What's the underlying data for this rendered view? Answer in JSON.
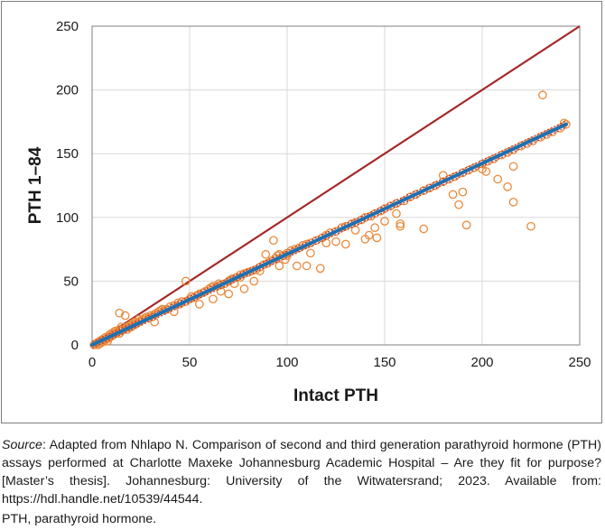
{
  "chart_data": {
    "type": "scatter",
    "title": "",
    "xlabel": "Intact PTH",
    "ylabel": "PTH 1–84",
    "xlim": [
      0,
      250
    ],
    "ylim": [
      0,
      250
    ],
    "x_ticks": [
      "0",
      "50",
      "100",
      "150",
      "200",
      "250"
    ],
    "y_ticks": [
      "0",
      "50",
      "100",
      "150",
      "200",
      "250"
    ],
    "grid": true,
    "legend": "none",
    "colors": {
      "points": "#e98a3c",
      "identity_line": "#a52a2a",
      "regression_line": "#1f6fb0",
      "confidence_band": "#c0392b",
      "grid": "#d9d9d9"
    },
    "lines": [
      {
        "kind": "identity",
        "x": [
          0,
          250
        ],
        "y": [
          0,
          250
        ]
      },
      {
        "kind": "regression",
        "x": [
          0,
          243
        ],
        "y": [
          0,
          173
        ]
      }
    ],
    "series": [
      {
        "points": [
          [
            1,
            0
          ],
          [
            2,
            1
          ],
          [
            3,
            0
          ],
          [
            3,
            2
          ],
          [
            4,
            1
          ],
          [
            4,
            3
          ],
          [
            5,
            2
          ],
          [
            5,
            4
          ],
          [
            6,
            3
          ],
          [
            6,
            5
          ],
          [
            7,
            4
          ],
          [
            7,
            6
          ],
          [
            8,
            3
          ],
          [
            8,
            5
          ],
          [
            9,
            6
          ],
          [
            9,
            8
          ],
          [
            10,
            7
          ],
          [
            10,
            9
          ],
          [
            11,
            8
          ],
          [
            11,
            10
          ],
          [
            12,
            9
          ],
          [
            12,
            11
          ],
          [
            13,
            10
          ],
          [
            14,
            9
          ],
          [
            14,
            12
          ],
          [
            15,
            11
          ],
          [
            15,
            14
          ],
          [
            16,
            12
          ],
          [
            17,
            13
          ],
          [
            18,
            14
          ],
          [
            18,
            12
          ],
          [
            19,
            15
          ],
          [
            20,
            14
          ],
          [
            20,
            16
          ],
          [
            21,
            17
          ],
          [
            22,
            16
          ],
          [
            22,
            18
          ],
          [
            23,
            17
          ],
          [
            24,
            18
          ],
          [
            24,
            20
          ],
          [
            25,
            19
          ],
          [
            26,
            20
          ],
          [
            27,
            21
          ],
          [
            28,
            22
          ],
          [
            29,
            21
          ],
          [
            30,
            23
          ],
          [
            31,
            22
          ],
          [
            32,
            24
          ],
          [
            33,
            25
          ],
          [
            34,
            26
          ],
          [
            35,
            27
          ],
          [
            36,
            28
          ],
          [
            37,
            27
          ],
          [
            38,
            28
          ],
          [
            40,
            30
          ],
          [
            42,
            31
          ],
          [
            44,
            33
          ],
          [
            45,
            32
          ],
          [
            46,
            34
          ],
          [
            48,
            34
          ],
          [
            50,
            36
          ],
          [
            51,
            38
          ],
          [
            52,
            37
          ],
          [
            54,
            39
          ],
          [
            55,
            40
          ],
          [
            57,
            41
          ],
          [
            58,
            42
          ],
          [
            60,
            44
          ],
          [
            61,
            45
          ],
          [
            62,
            46
          ],
          [
            64,
            46
          ],
          [
            65,
            48
          ],
          [
            66,
            47
          ],
          [
            68,
            48
          ],
          [
            70,
            50
          ],
          [
            71,
            51
          ],
          [
            72,
            52
          ],
          [
            74,
            53
          ],
          [
            76,
            55
          ],
          [
            78,
            56
          ],
          [
            80,
            57
          ],
          [
            82,
            58
          ],
          [
            84,
            59
          ],
          [
            86,
            61
          ],
          [
            88,
            63
          ],
          [
            90,
            64
          ],
          [
            92,
            66
          ],
          [
            94,
            68
          ],
          [
            95,
            70
          ],
          [
            96,
            71
          ],
          [
            98,
            70
          ],
          [
            100,
            72
          ],
          [
            102,
            74
          ],
          [
            104,
            75
          ],
          [
            106,
            76
          ],
          [
            108,
            78
          ],
          [
            110,
            79
          ],
          [
            112,
            80
          ],
          [
            115,
            82
          ],
          [
            118,
            84
          ],
          [
            120,
            86
          ],
          [
            122,
            88
          ],
          [
            125,
            89
          ],
          [
            128,
            92
          ],
          [
            130,
            93
          ],
          [
            133,
            95
          ],
          [
            135,
            96
          ],
          [
            138,
            98
          ],
          [
            140,
            100
          ],
          [
            143,
            101
          ],
          [
            145,
            103
          ],
          [
            148,
            105
          ],
          [
            150,
            107
          ],
          [
            153,
            109
          ],
          [
            156,
            111
          ],
          [
            160,
            113
          ],
          [
            163,
            116
          ],
          [
            166,
            118
          ],
          [
            170,
            121
          ],
          [
            173,
            123
          ],
          [
            176,
            125
          ],
          [
            180,
            128
          ],
          [
            183,
            130
          ],
          [
            186,
            132
          ],
          [
            190,
            135
          ],
          [
            193,
            137
          ],
          [
            196,
            139
          ],
          [
            200,
            142
          ],
          [
            203,
            144
          ],
          [
            206,
            146
          ],
          [
            210,
            149
          ],
          [
            213,
            151
          ],
          [
            216,
            153
          ],
          [
            220,
            156
          ],
          [
            223,
            158
          ],
          [
            226,
            160
          ],
          [
            230,
            163
          ],
          [
            233,
            165
          ],
          [
            236,
            167
          ],
          [
            240,
            170
          ],
          [
            243,
            173
          ],
          [
            14,
            25
          ],
          [
            17,
            23
          ],
          [
            48,
            50
          ],
          [
            93,
            82
          ],
          [
            100,
            70
          ],
          [
            105,
            62
          ],
          [
            110,
            62
          ],
          [
            112,
            72
          ],
          [
            117,
            60
          ],
          [
            120,
            80
          ],
          [
            125,
            81
          ],
          [
            140,
            83
          ],
          [
            142,
            86
          ],
          [
            145,
            92
          ],
          [
            150,
            97
          ],
          [
            156,
            103
          ],
          [
            158,
            95
          ],
          [
            158,
            93
          ],
          [
            170,
            91
          ],
          [
            180,
            133
          ],
          [
            185,
            118
          ],
          [
            188,
            110
          ],
          [
            190,
            120
          ],
          [
            192,
            94
          ],
          [
            200,
            138
          ],
          [
            202,
            136
          ],
          [
            208,
            130
          ],
          [
            213,
            124
          ],
          [
            216,
            112
          ],
          [
            216,
            140
          ],
          [
            225,
            93
          ],
          [
            231,
            196
          ],
          [
            242,
            174
          ],
          [
            70,
            40
          ],
          [
            78,
            44
          ],
          [
            83,
            50
          ],
          [
            86,
            58
          ],
          [
            96,
            62
          ],
          [
            130,
            79
          ],
          [
            135,
            90
          ],
          [
            146,
            84
          ],
          [
            32,
            18
          ],
          [
            42,
            26
          ],
          [
            55,
            32
          ],
          [
            62,
            36
          ],
          [
            66,
            42
          ],
          [
            73,
            48
          ],
          [
            76,
            53
          ],
          [
            89,
            71
          ],
          [
            99,
            67
          ]
        ]
      }
    ],
    "regression_band_offset": 2.5
  },
  "captions": {
    "source_label": "Source",
    "source_text": ": Adapted from Nhlapo N.  Comparison of second and third generation parathyroid hormone (PTH) assays performed at Charlotte Maxeke Johannesburg Academic Hospital – Are they fit for purpose? [Master’s thesis]. Johannesburg: University of the Witwatersrand; 2023. Available from: https://hdl.handle.net/10539/44544.",
    "abbreviation": "PTH, parathyroid hormone."
  }
}
